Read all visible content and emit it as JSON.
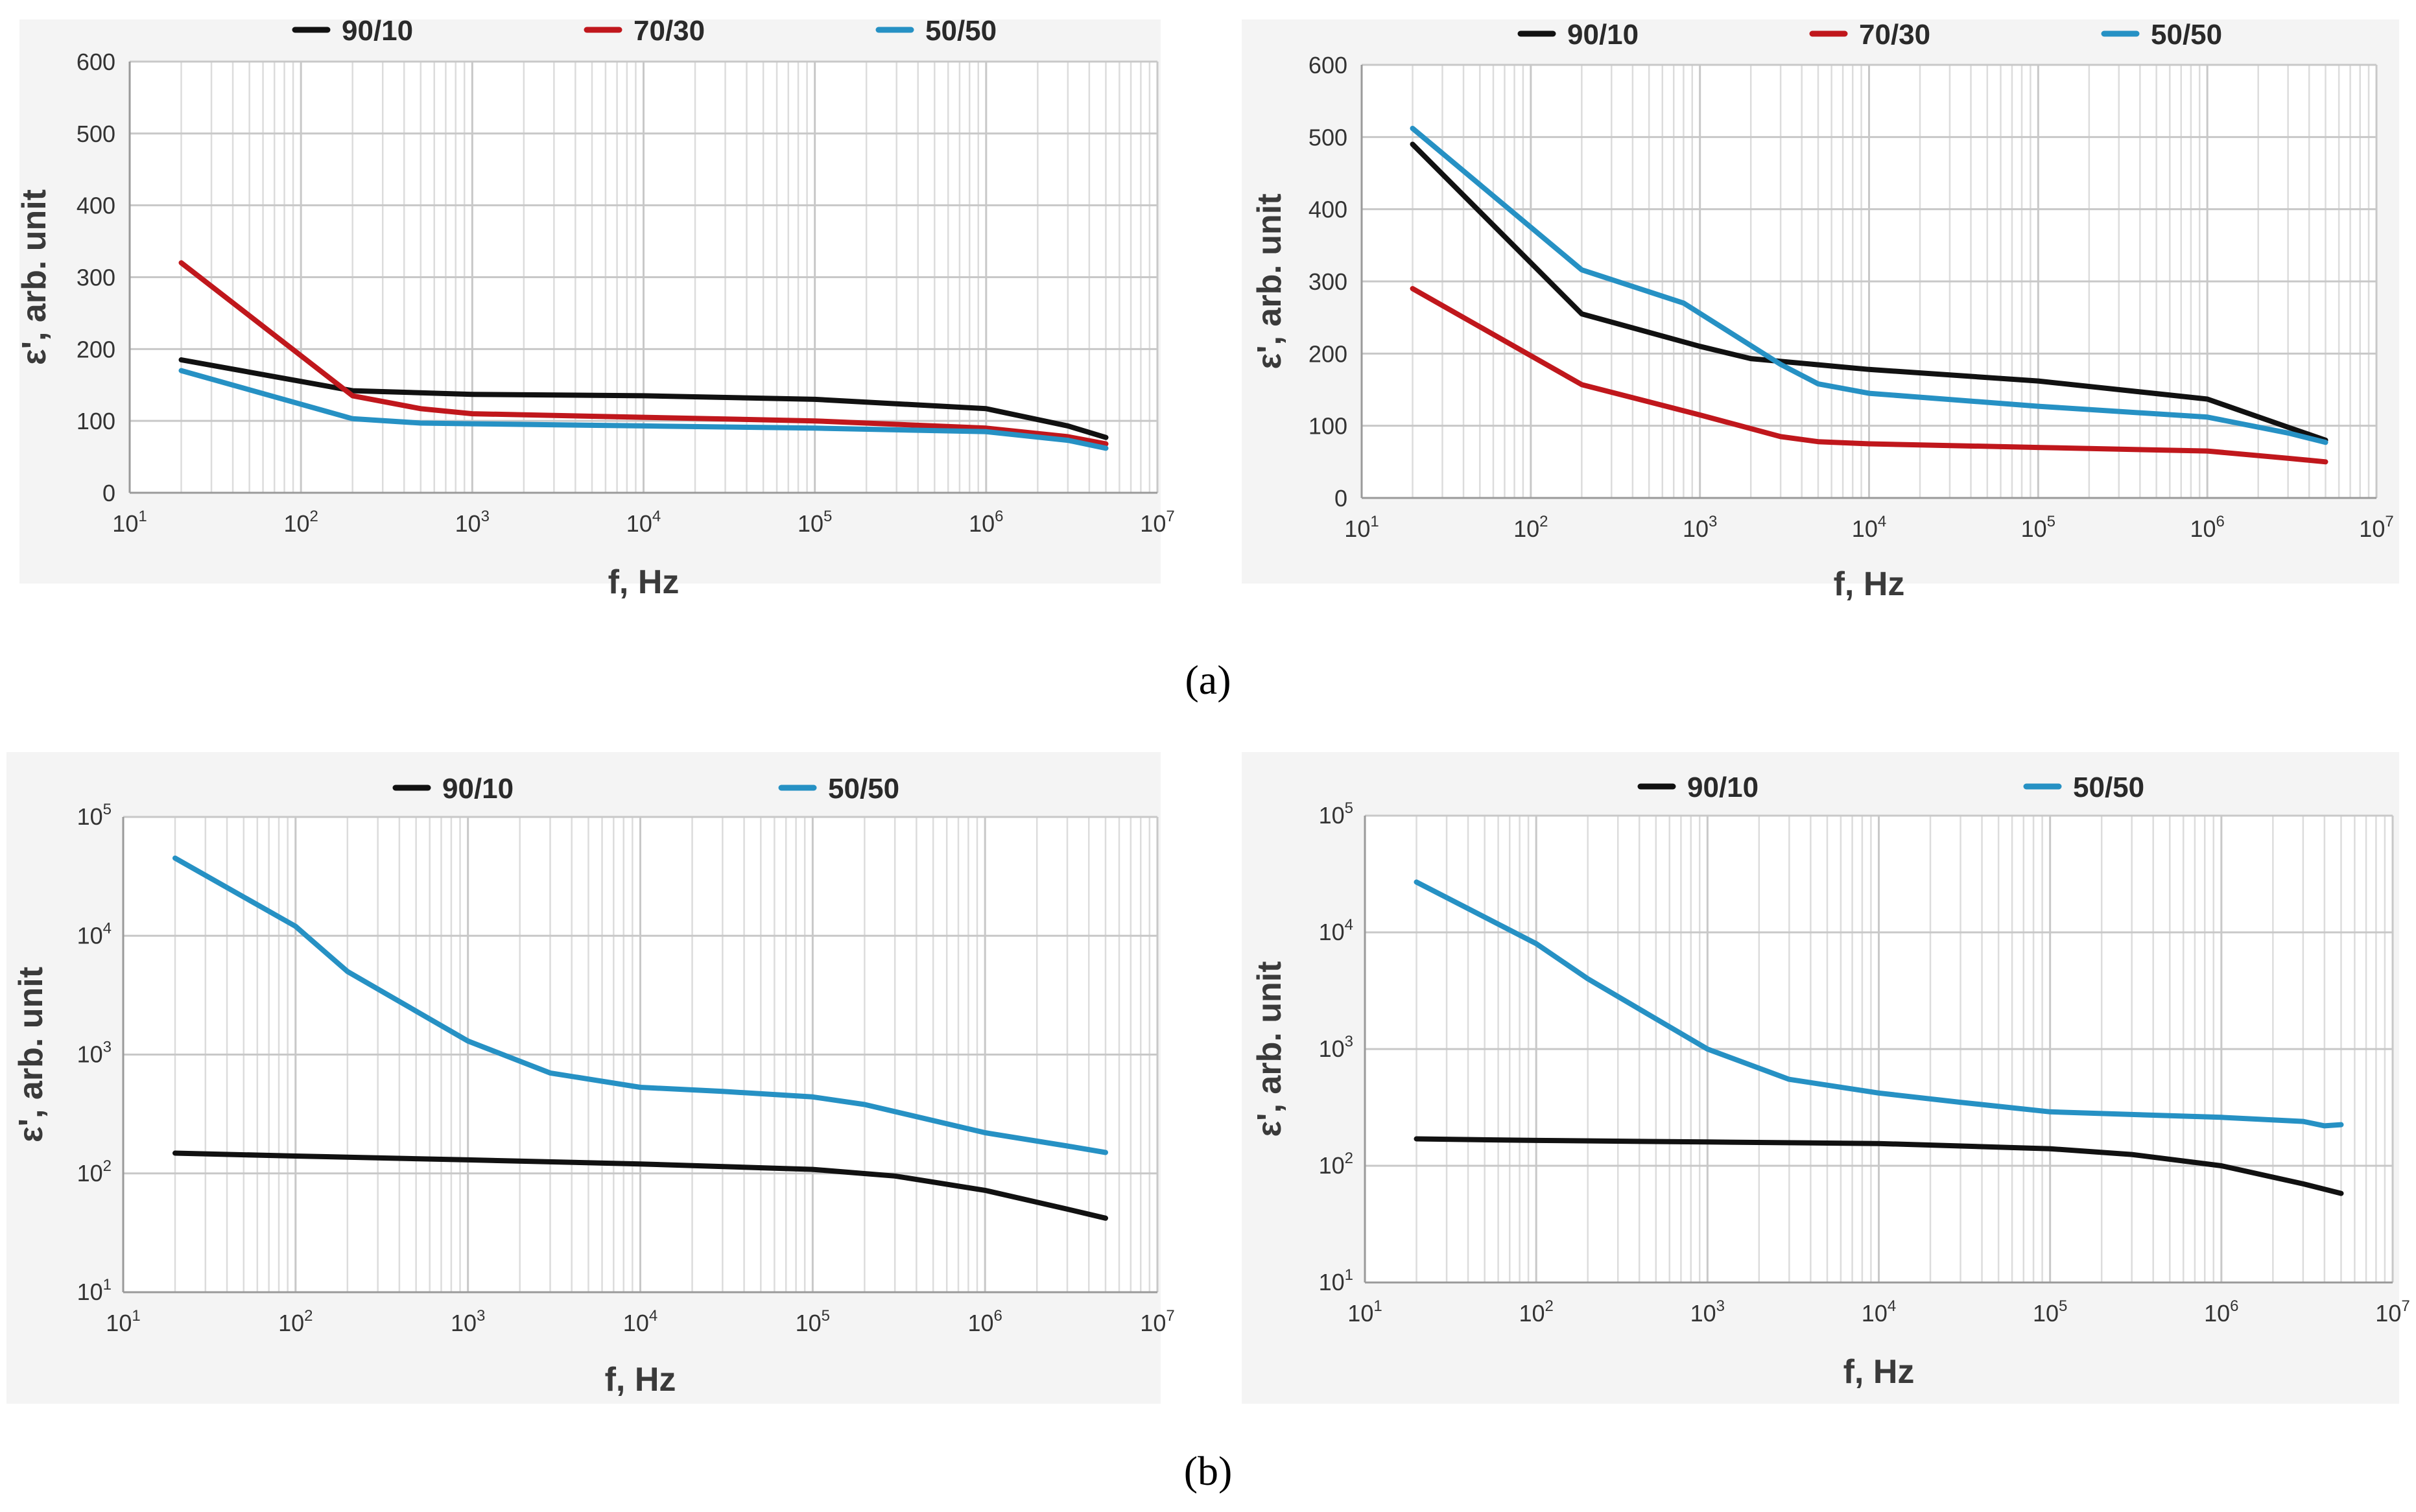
{
  "colors": {
    "90/10": "#111111",
    "70/30": "#c0171c",
    "50/50": "#2691c4"
  },
  "captions": [
    "(a)",
    "(b)"
  ],
  "chart_data": [
    {
      "type": "line",
      "panel": "a-left",
      "xlabel": "f, Hz",
      "ylabel": "ε', arb. unit",
      "xscale": "log",
      "xlim": [
        10,
        10000000
      ],
      "xtick_labels": [
        [
          "10",
          "1"
        ],
        [
          "10",
          "2"
        ],
        [
          "10",
          "3"
        ],
        [
          "10",
          "4"
        ],
        [
          "10",
          "5"
        ],
        [
          "10",
          "6"
        ],
        [
          "10",
          "7"
        ]
      ],
      "yscale": "linear",
      "ylim": [
        0,
        600
      ],
      "ytick_labels": [
        "0",
        "100",
        "200",
        "300",
        "400",
        "500",
        "600"
      ],
      "grid": true,
      "legend_position": "top",
      "series": [
        {
          "name": "90/10",
          "x": [
            20,
            200,
            1000,
            10000,
            100000,
            1000000,
            3000000,
            5000000
          ],
          "y": [
            185,
            142,
            137,
            135,
            130,
            117,
            93,
            77
          ]
        },
        {
          "name": "70/30",
          "x": [
            20,
            200,
            500,
            1000,
            10000,
            100000,
            1000000,
            3000000,
            5000000
          ],
          "y": [
            320,
            135,
            117,
            110,
            105,
            100,
            90,
            78,
            68
          ]
        },
        {
          "name": "50/50",
          "x": [
            20,
            200,
            500,
            1000,
            10000,
            100000,
            1000000,
            3000000,
            5000000
          ],
          "y": [
            170,
            103,
            97,
            96,
            93,
            90,
            85,
            73,
            62
          ]
        }
      ]
    },
    {
      "type": "line",
      "panel": "a-right",
      "xlabel": "f, Hz",
      "ylabel": "ε', arb. unit",
      "xscale": "log",
      "xlim": [
        10,
        10000000
      ],
      "xtick_labels": [
        [
          "10",
          "1"
        ],
        [
          "10",
          "2"
        ],
        [
          "10",
          "3"
        ],
        [
          "10",
          "4"
        ],
        [
          "10",
          "5"
        ],
        [
          "10",
          "6"
        ],
        [
          "10",
          "7"
        ]
      ],
      "yscale": "linear",
      "ylim": [
        0,
        600
      ],
      "ytick_labels": [
        "0",
        "100",
        "200",
        "300",
        "400",
        "500",
        "600"
      ],
      "grid": true,
      "legend_position": "top",
      "series": [
        {
          "name": "90/10",
          "x": [
            20,
            200,
            1000,
            2000,
            10000,
            100000,
            1000000,
            3000000,
            5000000
          ],
          "y": [
            490,
            255,
            210,
            193,
            178,
            162,
            137,
            98,
            80
          ]
        },
        {
          "name": "70/30",
          "x": [
            20,
            200,
            1000,
            3000,
            5000,
            10000,
            100000,
            1000000,
            3000000,
            5000000
          ],
          "y": [
            290,
            157,
            115,
            85,
            78,
            75,
            70,
            65,
            55,
            50
          ]
        },
        {
          "name": "50/50",
          "x": [
            20,
            200,
            800,
            3000,
            5000,
            10000,
            100000,
            1000000,
            3000000,
            5000000
          ],
          "y": [
            512,
            316,
            270,
            185,
            158,
            145,
            127,
            112,
            90,
            77
          ]
        }
      ]
    },
    {
      "type": "line",
      "panel": "b-left",
      "xlabel": "f, Hz",
      "ylabel": "ε', arb. unit",
      "xscale": "log",
      "xlim": [
        10,
        10000000
      ],
      "xtick_labels": [
        [
          "10",
          "1"
        ],
        [
          "10",
          "2"
        ],
        [
          "10",
          "3"
        ],
        [
          "10",
          "4"
        ],
        [
          "10",
          "5"
        ],
        [
          "10",
          "6"
        ],
        [
          "10",
          "7"
        ]
      ],
      "yscale": "log",
      "ylim": [
        10,
        100000
      ],
      "ytick_labels": [
        [
          "10",
          "1"
        ],
        [
          "10",
          "2"
        ],
        [
          "10",
          "3"
        ],
        [
          "10",
          "4"
        ],
        [
          "10",
          "5"
        ]
      ],
      "grid": true,
      "legend_position": "top",
      "series": [
        {
          "name": "90/10",
          "x": [
            20,
            100,
            1000,
            10000,
            100000,
            300000,
            1000000,
            3000000,
            5000000
          ],
          "y": [
            148,
            140,
            130,
            120,
            108,
            95,
            72,
            50,
            42
          ]
        },
        {
          "name": "50/50",
          "x": [
            20,
            100,
            200,
            1000,
            3000,
            10000,
            30000,
            100000,
            200000,
            1000000,
            3000000,
            5000000
          ],
          "y": [
            45000,
            12000,
            5000,
            1300,
            700,
            530,
            490,
            440,
            380,
            220,
            170,
            150
          ]
        }
      ]
    },
    {
      "type": "line",
      "panel": "b-right",
      "xlabel": "f, Hz",
      "ylabel": "ε', arb. unit",
      "xscale": "log",
      "xlim": [
        10,
        10000000
      ],
      "xtick_labels": [
        [
          "10",
          "1"
        ],
        [
          "10",
          "2"
        ],
        [
          "10",
          "3"
        ],
        [
          "10",
          "4"
        ],
        [
          "10",
          "5"
        ],
        [
          "10",
          "6"
        ],
        [
          "10",
          "7"
        ]
      ],
      "yscale": "log",
      "ylim": [
        10,
        100000
      ],
      "ytick_labels": [
        [
          "10",
          "1"
        ],
        [
          "10",
          "2"
        ],
        [
          "10",
          "3"
        ],
        [
          "10",
          "4"
        ],
        [
          "10",
          "5"
        ]
      ],
      "grid": true,
      "legend_position": "top",
      "series": [
        {
          "name": "90/10",
          "x": [
            20,
            100,
            1000,
            10000,
            100000,
            300000,
            1000000,
            3000000,
            5000000
          ],
          "y": [
            170,
            165,
            160,
            155,
            140,
            125,
            100,
            70,
            58
          ]
        },
        {
          "name": "50/50",
          "x": [
            20,
            100,
            200,
            1000,
            3000,
            10000,
            30000,
            100000,
            1000000,
            3000000,
            4000000,
            5000000
          ],
          "y": [
            27000,
            8000,
            4000,
            1000,
            550,
            420,
            350,
            290,
            260,
            240,
            220,
            225
          ]
        }
      ]
    }
  ]
}
